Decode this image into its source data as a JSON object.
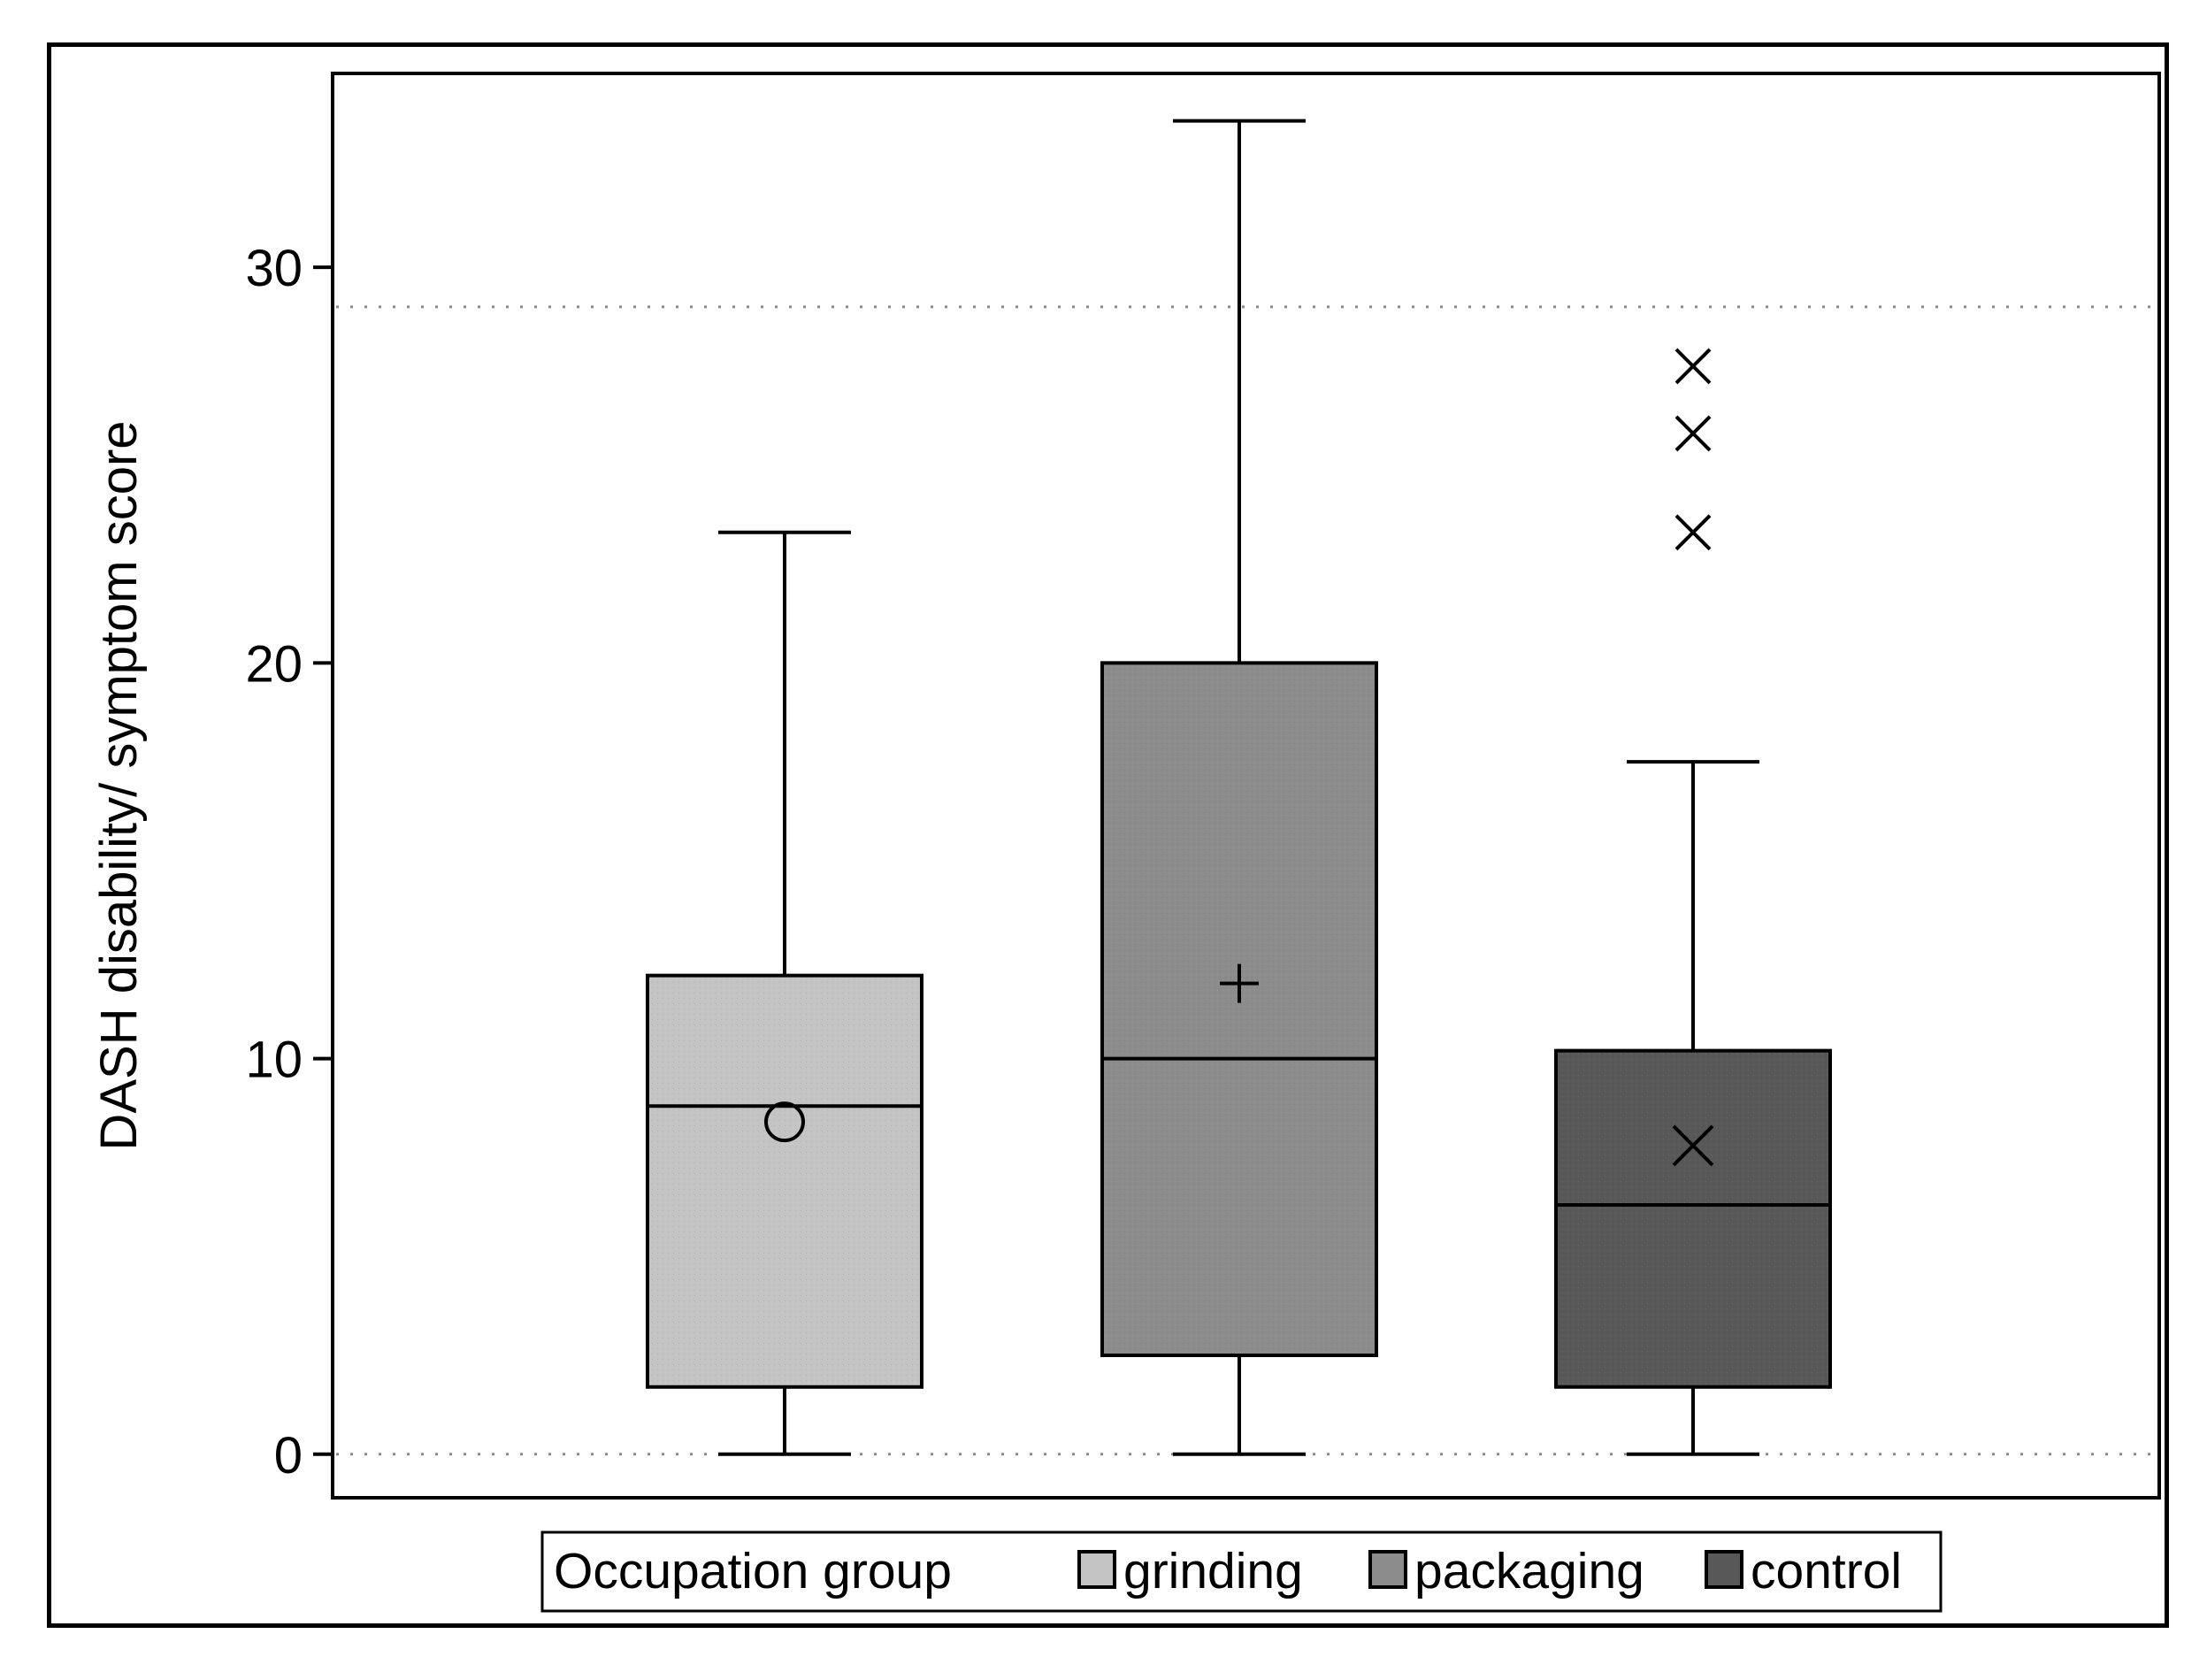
{
  "chart_data": {
    "type": "box",
    "title": "",
    "xlabel": "",
    "ylabel": "DASH disability/ symptom score",
    "ylim": [
      -1.1,
      34.9
    ],
    "yticks": [
      0,
      10,
      20,
      30
    ],
    "ytick_labels": [
      "0",
      "10",
      "20",
      "30"
    ],
    "reference_lines": [
      0,
      29
    ],
    "grid": false,
    "legend": {
      "title": "Occupation group",
      "position": "bottom",
      "entries": [
        "grinding",
        "packaging",
        "control"
      ]
    },
    "series": [
      {
        "name": "grinding",
        "color": "#c4c4c4",
        "mean_marker": "circle",
        "min": 0,
        "q1": 1.7,
        "median": 8.8,
        "q3": 12.1,
        "max": 23.3,
        "mean": 8.4,
        "outliers": []
      },
      {
        "name": "packaging",
        "color": "#8c8c8c",
        "mean_marker": "plus",
        "min": 0,
        "q1": 2.5,
        "median": 10.0,
        "q3": 20.0,
        "max": 33.7,
        "mean": 11.9,
        "outliers": []
      },
      {
        "name": "control",
        "color": "#585858",
        "mean_marker": "x",
        "min": 0,
        "q1": 1.7,
        "median": 6.3,
        "q3": 10.2,
        "max": 17.5,
        "mean": 7.8,
        "outliers": [
          23.3,
          25.8,
          27.5
        ]
      }
    ]
  }
}
